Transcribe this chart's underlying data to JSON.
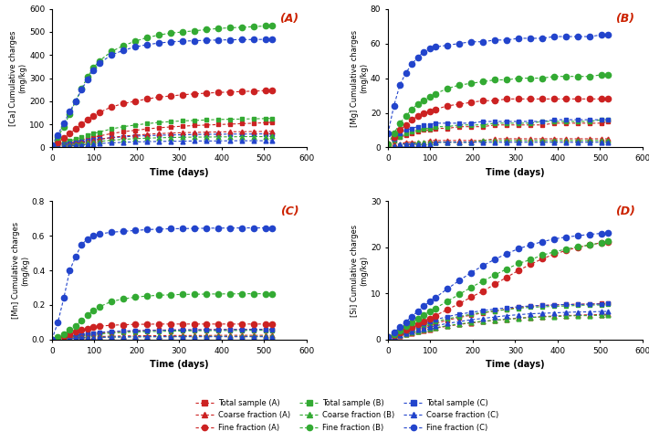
{
  "time_points": [
    0,
    14,
    28,
    42,
    56,
    70,
    84,
    98,
    112,
    140,
    168,
    196,
    224,
    252,
    280,
    308,
    336,
    364,
    392,
    420,
    448,
    476,
    504,
    519
  ],
  "Ca": {
    "fine_A": [
      5,
      20,
      40,
      60,
      80,
      100,
      120,
      138,
      152,
      175,
      190,
      200,
      210,
      218,
      223,
      228,
      232,
      235,
      238,
      240,
      242,
      244,
      246,
      248
    ],
    "fine_B": [
      5,
      45,
      90,
      145,
      200,
      255,
      305,
      345,
      375,
      415,
      440,
      460,
      475,
      487,
      495,
      500,
      505,
      510,
      515,
      518,
      520,
      523,
      526,
      528
    ],
    "fine_C": [
      10,
      55,
      105,
      155,
      200,
      250,
      295,
      335,
      365,
      400,
      420,
      435,
      445,
      452,
      457,
      460,
      462,
      464,
      465,
      466,
      467,
      467,
      468,
      468
    ],
    "total_A": [
      5,
      10,
      15,
      20,
      26,
      32,
      38,
      44,
      50,
      60,
      68,
      74,
      80,
      85,
      89,
      92,
      95,
      97,
      99,
      101,
      103,
      105,
      107,
      109
    ],
    "total_B": [
      5,
      12,
      20,
      28,
      36,
      44,
      52,
      60,
      67,
      80,
      90,
      97,
      103,
      108,
      112,
      115,
      117,
      119,
      121,
      122,
      123,
      124,
      125,
      126
    ],
    "total_C": [
      5,
      8,
      12,
      16,
      20,
      24,
      28,
      32,
      36,
      42,
      46,
      49,
      51,
      53,
      54,
      55,
      56,
      57,
      57,
      58,
      58,
      58,
      59,
      59
    ],
    "coarse_A": [
      2,
      5,
      9,
      13,
      17,
      21,
      26,
      31,
      35,
      43,
      49,
      53,
      57,
      60,
      62,
      64,
      65,
      66,
      67,
      68,
      68,
      69,
      69,
      70
    ],
    "coarse_B": [
      2,
      5,
      8,
      11,
      14,
      17,
      20,
      23,
      26,
      31,
      35,
      38,
      40,
      42,
      43,
      44,
      45,
      45,
      46,
      46,
      47,
      47,
      47,
      48
    ],
    "coarse_C": [
      2,
      3,
      5,
      7,
      9,
      11,
      13,
      15,
      17,
      20,
      22,
      24,
      25,
      26,
      27,
      27,
      28,
      28,
      28,
      29,
      29,
      29,
      29,
      30
    ]
  },
  "Mg": {
    "fine_A": [
      2,
      6,
      10,
      13,
      16,
      18,
      20,
      21,
      22,
      24,
      25,
      26,
      27,
      27,
      28,
      28,
      28,
      28,
      28,
      28,
      28,
      28,
      28,
      28
    ],
    "fine_B": [
      2,
      8,
      14,
      18,
      22,
      25,
      27,
      29,
      31,
      34,
      36,
      37,
      38,
      39,
      39,
      40,
      40,
      40,
      41,
      41,
      41,
      41,
      42,
      42
    ],
    "fine_C": [
      8,
      24,
      36,
      43,
      48,
      52,
      55,
      57,
      58,
      59,
      60,
      61,
      61,
      62,
      62,
      63,
      63,
      63,
      64,
      64,
      64,
      64,
      65,
      65
    ],
    "total_A": [
      2,
      4,
      6,
      7,
      8,
      9,
      10,
      10,
      11,
      11,
      12,
      12,
      12,
      13,
      13,
      13,
      13,
      13,
      14,
      14,
      14,
      14,
      14,
      15
    ],
    "total_B": [
      2,
      4,
      6,
      8,
      9,
      10,
      11,
      11,
      12,
      12,
      13,
      13,
      13,
      14,
      14,
      14,
      14,
      15,
      15,
      15,
      15,
      15,
      16,
      16
    ],
    "total_C": [
      2,
      5,
      8,
      10,
      11,
      12,
      13,
      13,
      14,
      14,
      14,
      14,
      15,
      15,
      15,
      15,
      15,
      15,
      16,
      16,
      16,
      16,
      16,
      16
    ],
    "coarse_A": [
      1,
      2,
      2,
      3,
      3,
      3,
      3,
      4,
      4,
      4,
      4,
      4,
      4,
      5,
      5,
      5,
      5,
      5,
      5,
      5,
      5,
      5,
      5,
      5
    ],
    "coarse_B": [
      1,
      1,
      2,
      2,
      2,
      3,
      3,
      3,
      3,
      3,
      3,
      3,
      4,
      4,
      4,
      4,
      4,
      4,
      4,
      4,
      4,
      4,
      4,
      4
    ],
    "coarse_C": [
      1,
      1,
      2,
      2,
      2,
      2,
      2,
      2,
      3,
      3,
      3,
      3,
      3,
      3,
      3,
      3,
      3,
      3,
      3,
      3,
      3,
      3,
      3,
      3
    ]
  },
  "Mn": {
    "fine_A": [
      0.0,
      0.01,
      0.02,
      0.03,
      0.045,
      0.055,
      0.065,
      0.072,
      0.078,
      0.083,
      0.086,
      0.088,
      0.089,
      0.09,
      0.09,
      0.09,
      0.09,
      0.09,
      0.09,
      0.09,
      0.09,
      0.09,
      0.09,
      0.09
    ],
    "fine_B": [
      0.0,
      0.015,
      0.03,
      0.055,
      0.08,
      0.11,
      0.14,
      0.17,
      0.19,
      0.22,
      0.235,
      0.245,
      0.252,
      0.256,
      0.259,
      0.261,
      0.262,
      0.263,
      0.264,
      0.264,
      0.265,
      0.265,
      0.265,
      0.265
    ],
    "fine_C": [
      0.0,
      0.1,
      0.24,
      0.4,
      0.48,
      0.55,
      0.58,
      0.6,
      0.61,
      0.62,
      0.625,
      0.63,
      0.635,
      0.638,
      0.64,
      0.641,
      0.642,
      0.643,
      0.644,
      0.644,
      0.645,
      0.645,
      0.645,
      0.645
    ],
    "total_A": [
      0.0,
      0.005,
      0.01,
      0.015,
      0.02,
      0.025,
      0.03,
      0.034,
      0.038,
      0.044,
      0.048,
      0.051,
      0.053,
      0.055,
      0.056,
      0.057,
      0.057,
      0.058,
      0.058,
      0.059,
      0.059,
      0.059,
      0.06,
      0.06
    ],
    "total_B": [
      0.0,
      0.004,
      0.009,
      0.013,
      0.018,
      0.022,
      0.026,
      0.03,
      0.033,
      0.038,
      0.042,
      0.044,
      0.046,
      0.048,
      0.049,
      0.05,
      0.051,
      0.052,
      0.052,
      0.053,
      0.053,
      0.054,
      0.054,
      0.054
    ],
    "total_C": [
      0.0,
      0.007,
      0.014,
      0.02,
      0.026,
      0.031,
      0.035,
      0.039,
      0.042,
      0.047,
      0.05,
      0.052,
      0.053,
      0.054,
      0.055,
      0.056,
      0.056,
      0.057,
      0.057,
      0.058,
      0.058,
      0.058,
      0.059,
      0.059
    ],
    "coarse_A": [
      0.0,
      0.003,
      0.005,
      0.008,
      0.011,
      0.013,
      0.015,
      0.017,
      0.018,
      0.02,
      0.021,
      0.022,
      0.023,
      0.023,
      0.024,
      0.024,
      0.024,
      0.024,
      0.025,
      0.025,
      0.025,
      0.025,
      0.025,
      0.025
    ],
    "coarse_B": [
      0.0,
      0.002,
      0.004,
      0.006,
      0.008,
      0.01,
      0.011,
      0.012,
      0.013,
      0.015,
      0.016,
      0.017,
      0.017,
      0.018,
      0.018,
      0.018,
      0.019,
      0.019,
      0.019,
      0.019,
      0.019,
      0.019,
      0.02,
      0.02
    ],
    "coarse_C": [
      0.0,
      0.002,
      0.004,
      0.006,
      0.008,
      0.01,
      0.011,
      0.012,
      0.013,
      0.015,
      0.016,
      0.016,
      0.017,
      0.017,
      0.017,
      0.017,
      0.017,
      0.017,
      0.017,
      0.017,
      0.017,
      0.017,
      0.017,
      0.017
    ]
  },
  "Si": {
    "fine_A": [
      0.5,
      1.0,
      1.6,
      2.2,
      2.8,
      3.4,
      4.0,
      4.6,
      5.2,
      6.5,
      7.8,
      9.2,
      10.5,
      12.0,
      13.5,
      15.0,
      16.3,
      17.5,
      18.5,
      19.3,
      20.0,
      20.5,
      21.0,
      21.2
    ],
    "fine_B": [
      0.5,
      1.2,
      2.0,
      2.9,
      3.7,
      4.5,
      5.3,
      6.1,
      6.8,
      8.3,
      9.8,
      11.3,
      12.7,
      14.0,
      15.3,
      16.5,
      17.3,
      18.3,
      19.0,
      19.6,
      20.1,
      20.5,
      21.0,
      21.3
    ],
    "fine_C": [
      0.5,
      1.5,
      2.7,
      3.8,
      5.0,
      6.1,
      7.2,
      8.2,
      9.1,
      11.0,
      12.8,
      14.5,
      16.0,
      17.4,
      18.6,
      19.7,
      20.5,
      21.2,
      21.8,
      22.2,
      22.5,
      22.8,
      23.0,
      23.2
    ],
    "total_A": [
      0.3,
      0.7,
      1.1,
      1.5,
      1.9,
      2.3,
      2.7,
      3.1,
      3.5,
      4.2,
      4.8,
      5.3,
      5.8,
      6.2,
      6.6,
      7.0,
      7.2,
      7.4,
      7.5,
      7.6,
      7.7,
      7.7,
      7.8,
      7.8
    ],
    "total_B": [
      0.3,
      0.8,
      1.3,
      1.8,
      2.3,
      2.7,
      3.1,
      3.5,
      3.9,
      4.5,
      5.0,
      5.5,
      5.9,
      6.2,
      6.5,
      6.8,
      7.0,
      7.1,
      7.2,
      7.3,
      7.4,
      7.5,
      7.5,
      7.6
    ],
    "total_C": [
      0.3,
      0.9,
      1.5,
      2.0,
      2.5,
      3.0,
      3.5,
      3.9,
      4.3,
      5.0,
      5.5,
      5.9,
      6.3,
      6.6,
      6.9,
      7.1,
      7.3,
      7.4,
      7.5,
      7.6,
      7.6,
      7.7,
      7.7,
      7.8
    ],
    "coarse_A": [
      0.2,
      0.5,
      0.8,
      1.1,
      1.4,
      1.7,
      2.0,
      2.2,
      2.5,
      2.9,
      3.3,
      3.6,
      3.9,
      4.2,
      4.4,
      4.7,
      4.8,
      5.0,
      5.1,
      5.2,
      5.3,
      5.4,
      5.4,
      5.5
    ],
    "coarse_B": [
      0.2,
      0.5,
      0.9,
      1.2,
      1.5,
      1.8,
      2.1,
      2.3,
      2.6,
      3.0,
      3.4,
      3.7,
      4.0,
      4.2,
      4.4,
      4.6,
      4.8,
      4.9,
      5.0,
      5.1,
      5.2,
      5.2,
      5.3,
      5.3
    ],
    "coarse_C": [
      0.2,
      0.6,
      1.0,
      1.4,
      1.8,
      2.1,
      2.4,
      2.7,
      3.0,
      3.5,
      3.9,
      4.3,
      4.6,
      4.9,
      5.2,
      5.4,
      5.6,
      5.7,
      5.8,
      5.9,
      6.0,
      6.0,
      6.1,
      6.1
    ]
  },
  "colors": {
    "A": "#cc2222",
    "B": "#33aa33",
    "C": "#2244cc"
  },
  "ylims": {
    "Ca": [
      0,
      600
    ],
    "Mg": [
      0,
      80
    ],
    "Mn": [
      0,
      0.8
    ],
    "Si": [
      0,
      30
    ]
  },
  "xlim": [
    0,
    600
  ],
  "xticks": [
    0,
    100,
    200,
    300,
    400,
    500,
    600
  ],
  "yticks": {
    "Ca": [
      0,
      100,
      200,
      300,
      400,
      500,
      600
    ],
    "Mg": [
      0,
      20,
      40,
      60,
      80
    ],
    "Mn": [
      0.0,
      0.2,
      0.4,
      0.6,
      0.8
    ],
    "Si": [
      0,
      10,
      20,
      30
    ]
  },
  "panel_labels": [
    "(A)",
    "(B)",
    "(C)",
    "(D)"
  ],
  "panel_label_color": "#cc2200",
  "ylabels": {
    "Ca": "[Ca] Cumulative charges\n(mg/kg)",
    "Mg": "[Mg] Cumulative charges\n(mg/kg)",
    "Mn": "[Mn] Cumulative charges\n(mg/kg)",
    "Si": "[Si] Cumulative charges\n(mg/kg)"
  },
  "xlabel": "Time (days)"
}
